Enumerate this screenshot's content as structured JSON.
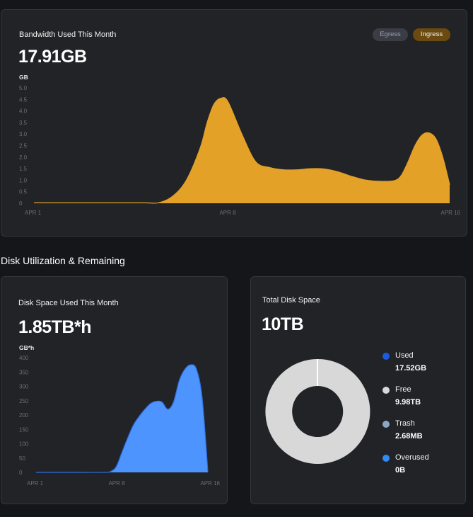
{
  "bandwidth": {
    "title": "Bandwidth Used This Month",
    "value": "17.91GB",
    "unit": "GB",
    "toggles": [
      {
        "label": "Egress",
        "active": false,
        "color": "#3a3d45"
      },
      {
        "label": "Ingress",
        "active": true,
        "color": "#6b4a10"
      }
    ]
  },
  "section_title": "Disk Utilization & Remaining",
  "disk_used": {
    "title": "Disk Space Used This Month",
    "value": "1.85TB*h",
    "unit": "GB*h"
  },
  "total_disk": {
    "title": "Total Disk Space",
    "value": "10TB",
    "legend": [
      {
        "name": "Used",
        "value": "17.52GB",
        "color": "#1a5ce0"
      },
      {
        "name": "Free",
        "value": "9.98TB",
        "color": "#d8d8d8"
      },
      {
        "name": "Trash",
        "value": "2.68MB",
        "color": "#8fa5c4"
      },
      {
        "name": "Overused",
        "value": "0B",
        "color": "#2f8cf0"
      }
    ]
  },
  "chart_data": [
    {
      "type": "area",
      "title": "Bandwidth Used This Month",
      "ylabel": "GB",
      "color": "#e3a128",
      "ylim": [
        0,
        5
      ],
      "yticks": [
        0,
        0.5,
        1.0,
        1.5,
        2.0,
        2.5,
        3.0,
        3.5,
        4.0,
        4.5,
        5.0
      ],
      "ytick_labels": [
        "0",
        "0.5",
        "1.0",
        "1.5",
        "2.0",
        "2.5",
        "3.0",
        "3.5",
        "4.0",
        "4.5",
        "5.0"
      ],
      "xlim": [
        1,
        16
      ],
      "xticks": [
        1,
        8,
        16
      ],
      "xtick_labels": [
        "APR 1",
        "APR 8",
        "APR 16"
      ],
      "x": [
        1,
        2,
        3,
        4,
        5,
        5.5,
        6,
        6.5,
        7,
        7.25,
        7.5,
        7.75,
        8,
        8.5,
        9,
        9.5,
        10,
        10.5,
        11,
        11.5,
        12,
        12.5,
        13,
        13.5,
        14,
        14.25,
        14.5,
        14.75,
        15,
        15.25,
        15.5,
        15.75,
        16
      ],
      "values": [
        0.02,
        0.02,
        0.02,
        0.02,
        0.02,
        0.02,
        0.3,
        1.0,
        2.4,
        3.5,
        4.3,
        4.55,
        4.4,
        3.0,
        1.8,
        1.55,
        1.45,
        1.45,
        1.5,
        1.48,
        1.35,
        1.15,
        1.0,
        0.95,
        0.98,
        1.2,
        1.8,
        2.5,
        2.95,
        3.05,
        2.8,
        2.0,
        0.8
      ]
    },
    {
      "type": "area",
      "title": "Disk Space Used This Month",
      "ylabel": "GB*h",
      "color": "#4d94ff",
      "ylim": [
        0,
        400
      ],
      "yticks": [
        0,
        50,
        100,
        150,
        200,
        250,
        300,
        350,
        400
      ],
      "ytick_labels": [
        "0",
        "50",
        "100",
        "150",
        "200",
        "250",
        "300",
        "350",
        "400"
      ],
      "xlim": [
        1,
        16
      ],
      "xticks": [
        1,
        8,
        16
      ],
      "xtick_labels": [
        "APR 1",
        "APR 8",
        "APR 16"
      ],
      "x": [
        1,
        3,
        5,
        7,
        7.5,
        8,
        8.5,
        9,
        9.5,
        10,
        10.5,
        11,
        11.5,
        12,
        12.5,
        13,
        13.5,
        14,
        14.5,
        15,
        15.5,
        16
      ],
      "values": [
        0,
        0,
        0,
        0,
        3,
        20,
        70,
        120,
        165,
        195,
        220,
        240,
        248,
        245,
        220,
        245,
        320,
        360,
        375,
        360,
        260,
        3
      ]
    },
    {
      "type": "pie",
      "title": "Total Disk Space",
      "style": "donut",
      "labels": [
        "Used",
        "Free",
        "Trash",
        "Overused"
      ],
      "values": [
        17.52,
        9980,
        0.00268,
        0
      ],
      "value_units": "GB",
      "colors": [
        "#1a5ce0",
        "#d8d8d8",
        "#8fa5c4",
        "#2f8cf0"
      ]
    }
  ]
}
